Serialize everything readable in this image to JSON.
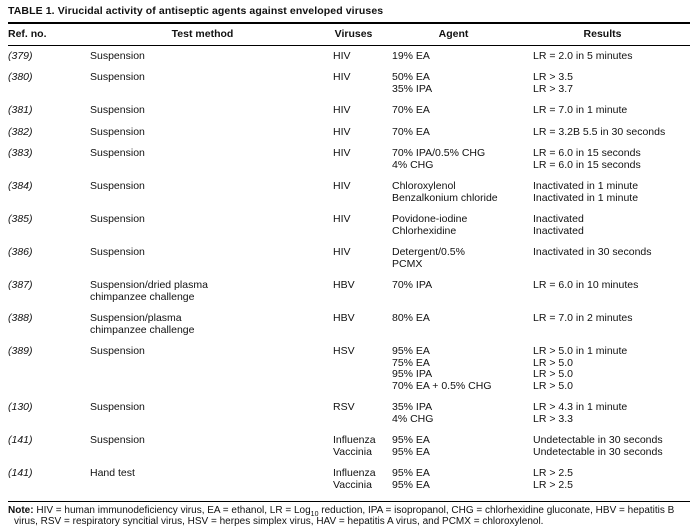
{
  "page": {
    "title": "TABLE 1. Virucidal activity of antiseptic agents against enveloped viruses"
  },
  "table": {
    "columns": {
      "ref": "Ref. no.",
      "method": "Test method",
      "viruses": "Viruses",
      "agent": "Agent",
      "results": "Results"
    },
    "rows": [
      {
        "ref": "(379)",
        "method": [
          "Suspension"
        ],
        "viruses": [
          "HIV"
        ],
        "agent": [
          "19% EA"
        ],
        "results": [
          "LR = 2.0 in 5 minutes"
        ]
      },
      {
        "ref": "(380)",
        "method": [
          "Suspension"
        ],
        "viruses": [
          "HIV"
        ],
        "agent": [
          "50% EA",
          "35% IPA"
        ],
        "results": [
          "LR > 3.5",
          "LR > 3.7"
        ]
      },
      {
        "ref": "(381)",
        "method": [
          "Suspension"
        ],
        "viruses": [
          "HIV"
        ],
        "agent": [
          "70% EA"
        ],
        "results": [
          "LR = 7.0 in 1 minute"
        ]
      },
      {
        "ref": "(382)",
        "method": [
          "Suspension"
        ],
        "viruses": [
          "HIV"
        ],
        "agent": [
          "70% EA"
        ],
        "results": [
          "LR = 3.2B 5.5 in 30 seconds"
        ]
      },
      {
        "ref": "(383)",
        "method": [
          "Suspension"
        ],
        "viruses": [
          "HIV"
        ],
        "agent": [
          "70% IPA/0.5% CHG",
          "4% CHG"
        ],
        "results": [
          "LR = 6.0 in 15 seconds",
          "LR = 6.0 in 15 seconds"
        ]
      },
      {
        "ref": "(384)",
        "method": [
          "Suspension"
        ],
        "viruses": [
          "HIV"
        ],
        "agent": [
          "Chloroxylenol",
          "Benzalkonium chloride"
        ],
        "results": [
          "Inactivated in 1 minute",
          "Inactivated in 1 minute"
        ]
      },
      {
        "ref": "(385)",
        "method": [
          "Suspension"
        ],
        "viruses": [
          "HIV"
        ],
        "agent": [
          "Povidone-iodine",
          "Chlorhexidine"
        ],
        "results": [
          "Inactivated",
          "Inactivated"
        ]
      },
      {
        "ref": "(386)",
        "method": [
          "Suspension"
        ],
        "viruses": [
          "HIV"
        ],
        "agent": [
          "Detergent/0.5%",
          "PCMX"
        ],
        "results": [
          "Inactivated in 30 seconds"
        ]
      },
      {
        "ref": "(387)",
        "method": [
          "Suspension/dried plasma",
          "chimpanzee challenge"
        ],
        "viruses": [
          "HBV"
        ],
        "agent": [
          "70% IPA"
        ],
        "results": [
          "LR = 6.0 in 10 minutes"
        ]
      },
      {
        "ref": "(388)",
        "method": [
          "Suspension/plasma",
          "chimpanzee challenge"
        ],
        "viruses": [
          "HBV"
        ],
        "agent": [
          "80% EA"
        ],
        "results": [
          "LR = 7.0 in 2 minutes"
        ]
      },
      {
        "ref": "(389)",
        "method": [
          "Suspension"
        ],
        "viruses": [
          "HSV"
        ],
        "agent": [
          "95% EA",
          "75% EA",
          "95% IPA",
          "70% EA + 0.5% CHG"
        ],
        "results": [
          "LR > 5.0 in 1 minute",
          "LR > 5.0",
          "LR > 5.0",
          "LR > 5.0"
        ]
      },
      {
        "ref": "(130)",
        "method": [
          "Suspension"
        ],
        "viruses": [
          "RSV"
        ],
        "agent": [
          "35% IPA",
          "4% CHG"
        ],
        "results": [
          "LR > 4.3 in 1 minute",
          "LR > 3.3"
        ]
      },
      {
        "ref": "(141)",
        "method": [
          "Suspension"
        ],
        "viruses": [
          "Influenza",
          "Vaccinia"
        ],
        "agent": [
          "95% EA",
          "95% EA"
        ],
        "results": [
          "Undetectable in 30 seconds",
          "Undetectable in 30 seconds"
        ]
      },
      {
        "ref": "(141)",
        "method": [
          "Hand test"
        ],
        "viruses": [
          "Influenza",
          "Vaccinia"
        ],
        "agent": [
          "95% EA",
          "95% EA"
        ],
        "results": [
          "LR > 2.5",
          "LR > 2.5"
        ]
      }
    ]
  },
  "note": {
    "label": "Note:",
    "before_sub": " HIV = human immunodeficiency virus, EA = ethanol, LR = Log",
    "sub": "10",
    "after_sub": " reduction, IPA = isopropanol, CHG = chlorhexidine gluconate, HBV = hepatitis B virus, RSV = respiratory syncitial virus, HSV = herpes simplex virus, HAV = hepatitis A virus, and PCMX = chloroxylenol."
  }
}
